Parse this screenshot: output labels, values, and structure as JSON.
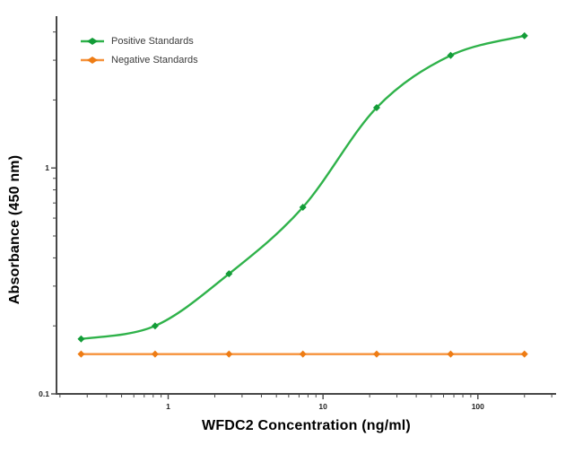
{
  "figure": {
    "background": "#ffffff",
    "axis_color": "#474747",
    "tick_label_color": "#1f1f1f"
  },
  "chart_data": {
    "type": "line",
    "title": "",
    "xlabel": "WFDC2 Concentration (ng/ml)",
    "ylabel": "Absorbance (450 nm)",
    "x_scale": "log",
    "y_scale": "log",
    "xlim": [
      0.19,
      320
    ],
    "ylim": [
      0.1,
      4.7
    ],
    "grid": false,
    "x_ticks": [
      {
        "value": 1,
        "label": "1"
      },
      {
        "value": 10,
        "label": "10"
      },
      {
        "value": 100,
        "label": "100"
      }
    ],
    "y_ticks": [
      {
        "value": 0.1,
        "label": "0.1"
      },
      {
        "value": 1,
        "label": "1"
      }
    ],
    "x_minor_ticks": [
      0.2,
      0.3,
      0.4,
      0.5,
      0.6,
      0.7,
      0.8,
      0.9,
      2,
      3,
      4,
      5,
      6,
      7,
      8,
      9,
      20,
      30,
      40,
      50,
      60,
      70,
      80,
      90,
      200,
      300
    ],
    "y_minor_ticks": [
      0.2,
      0.3,
      0.4,
      0.5,
      0.6,
      0.7,
      0.8,
      0.9,
      2,
      3,
      4
    ],
    "legend": {
      "position": "top-left",
      "entries": [
        "Positive Standards",
        "Negative Standards"
      ]
    },
    "series": [
      {
        "name": "Positive Standards",
        "line_color": "#2fb24a",
        "marker_color": "#139c38",
        "marker": "diamond",
        "curve": "smooth",
        "x": [
          0.274,
          0.823,
          2.47,
          7.41,
          22.2,
          66.7,
          200
        ],
        "y": [
          0.175,
          0.2,
          0.34,
          0.67,
          1.85,
          3.15,
          3.85
        ]
      },
      {
        "name": "Negative Standards",
        "line_color": "#f6913a",
        "marker_color": "#ee7c14",
        "marker": "diamond",
        "curve": "smooth",
        "x": [
          0.274,
          0.823,
          2.47,
          7.41,
          22.2,
          66.7,
          200
        ],
        "y": [
          0.15,
          0.15,
          0.15,
          0.15,
          0.15,
          0.15,
          0.15
        ]
      }
    ]
  }
}
